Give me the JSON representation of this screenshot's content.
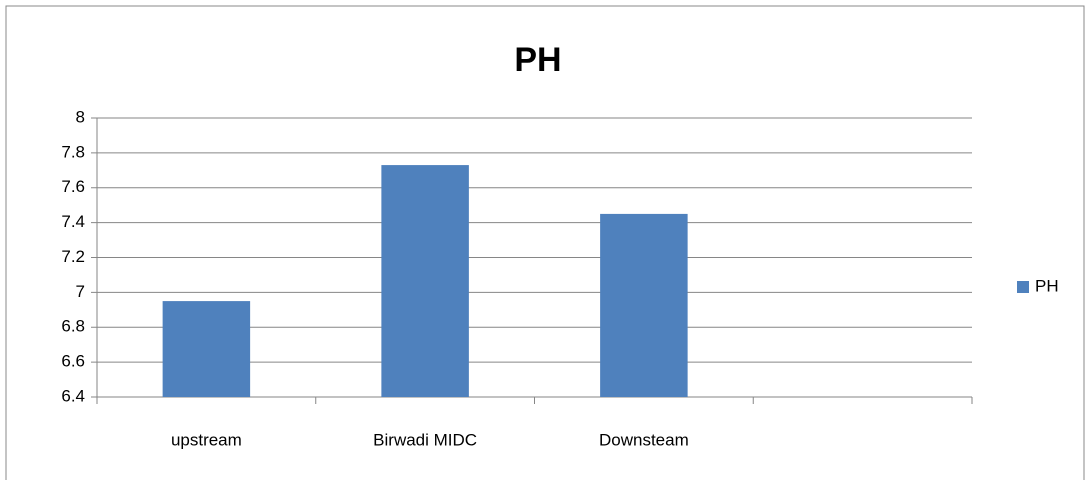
{
  "chart_data": {
    "type": "bar",
    "title": "PH",
    "categories": [
      "upstream",
      "Birwadi MIDC",
      "Downsteam",
      null
    ],
    "series": [
      {
        "name": "PH",
        "color": "#4f81bd",
        "values": [
          6.95,
          7.73,
          7.45,
          null
        ]
      }
    ],
    "ylim": [
      6.4,
      8
    ],
    "yticks": [
      6.4,
      6.6,
      6.8,
      7,
      7.2,
      7.4,
      7.6,
      7.8,
      8
    ],
    "grid": true,
    "legend": "right"
  }
}
